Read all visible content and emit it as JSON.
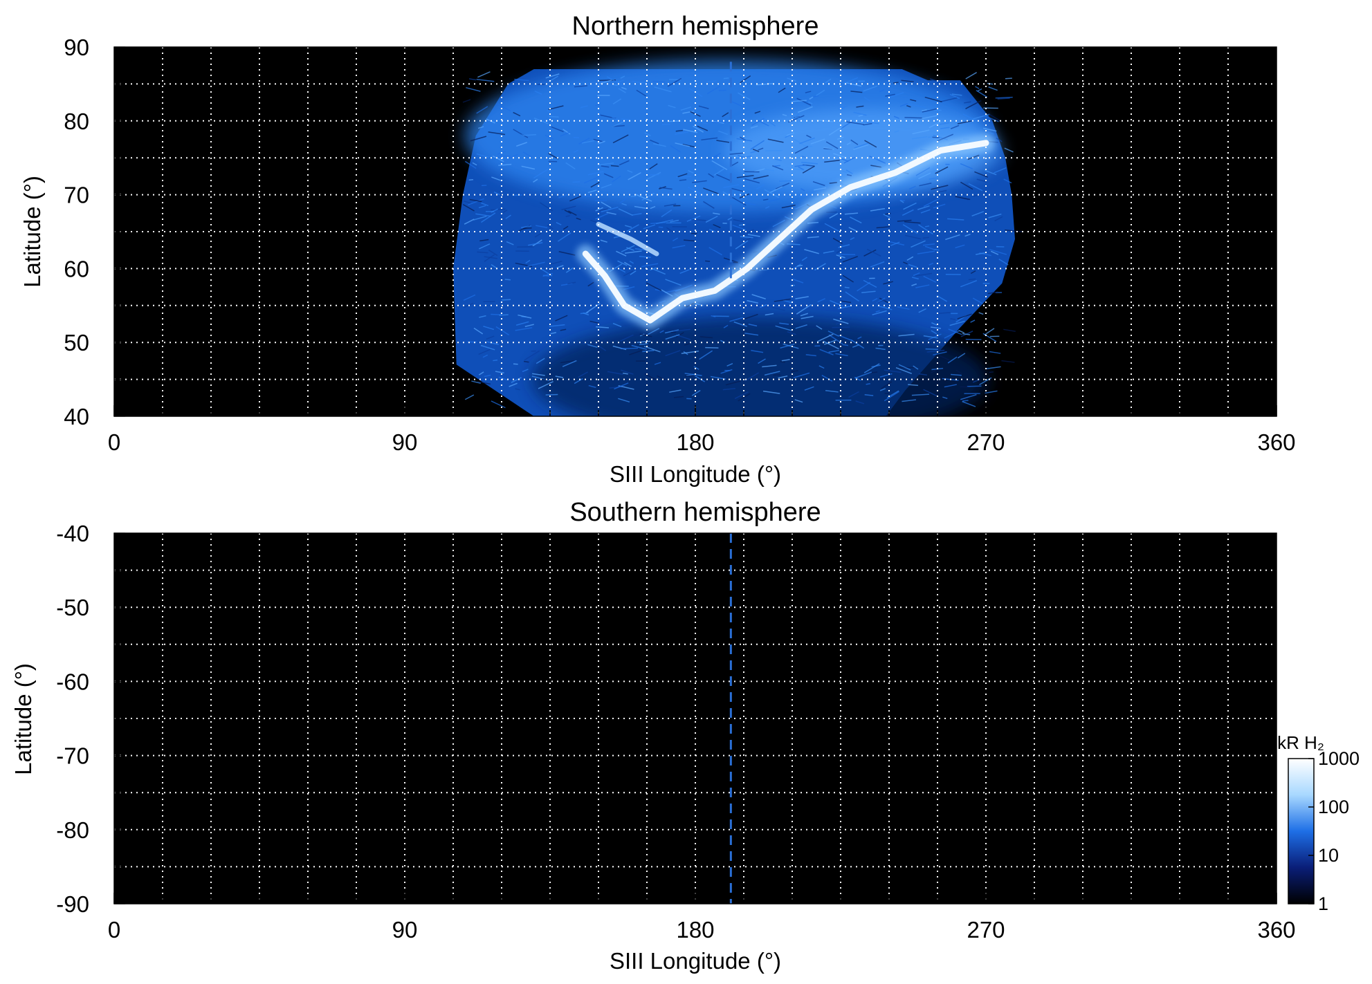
{
  "chart_data": [
    {
      "type": "heatmap",
      "title": "Northern hemisphere",
      "xlabel": "SIII Longitude (°)",
      "ylabel": "Latitude (°)",
      "xlim": [
        0,
        360
      ],
      "ylim": [
        40,
        90
      ],
      "x_ticks": [
        "0",
        "90",
        "180",
        "270",
        "360"
      ],
      "y_ticks": [
        "90",
        "80",
        "70",
        "60",
        "50",
        "40"
      ],
      "grid": true,
      "reference_line": {
        "longitude": 191,
        "latitude_range": [
          58,
          88
        ],
        "style": "dashed",
        "color": "#2a6fd6"
      },
      "emission_region": {
        "longitude_range": [
          104,
          278
        ],
        "latitude_range": [
          40,
          87
        ],
        "main_oval": [
          [
            146,
            62
          ],
          [
            152,
            59
          ],
          [
            158,
            55
          ],
          [
            166,
            53
          ],
          [
            176,
            56
          ],
          [
            186,
            57
          ],
          [
            196,
            60
          ],
          [
            206,
            64
          ],
          [
            216,
            68
          ],
          [
            228,
            71
          ],
          [
            242,
            73
          ],
          [
            256,
            76
          ],
          [
            270,
            77
          ]
        ]
      }
    },
    {
      "type": "heatmap",
      "title": "Southern hemisphere",
      "xlabel": "SIII Longitude (°)",
      "ylabel": "Latitude (°)",
      "xlim": [
        0,
        360
      ],
      "ylim": [
        -90,
        -40
      ],
      "x_ticks": [
        "0",
        "90",
        "180",
        "270",
        "360"
      ],
      "y_ticks": [
        "-40",
        "-50",
        "-60",
        "-70",
        "-80",
        "-90"
      ],
      "grid": true,
      "reference_line": {
        "longitude": 191,
        "latitude_range": [
          -90,
          -40
        ],
        "style": "dashed",
        "color": "#2a6fd6"
      },
      "emission_region": null
    }
  ],
  "colorbar": {
    "label": "kR H₂",
    "ticks": [
      "1000",
      "100",
      "10",
      "1"
    ],
    "scale": "log",
    "range": [
      1,
      1000
    ],
    "colors": [
      "#000000",
      "#0a1e78",
      "#1e6fe6",
      "#a8d8ff",
      "#ffffff"
    ]
  }
}
